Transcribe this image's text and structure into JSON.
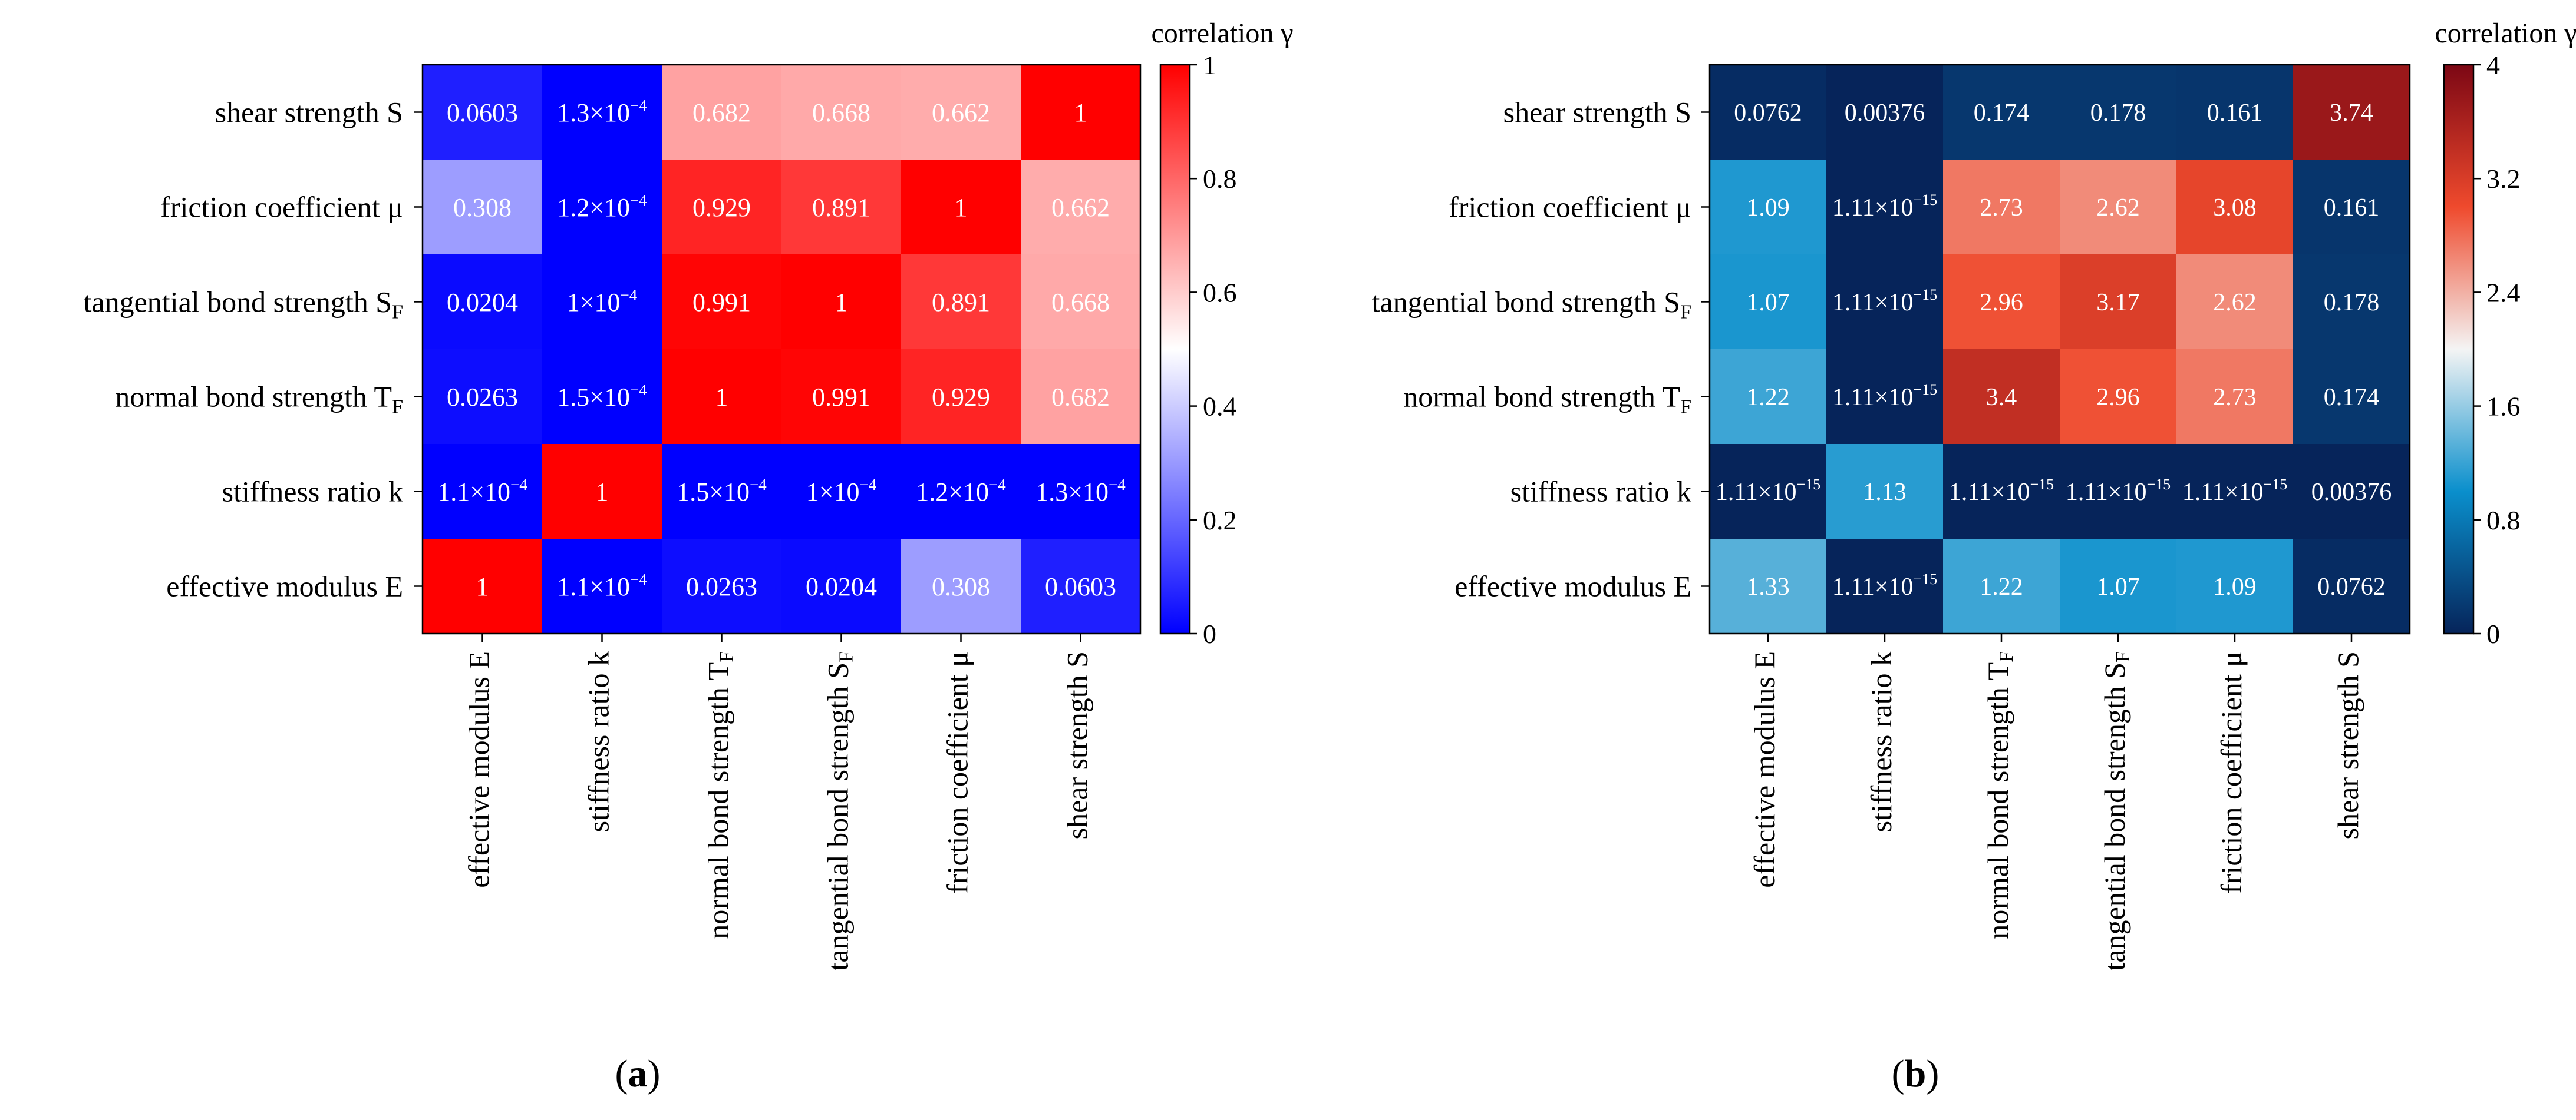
{
  "chart_data": [
    {
      "type": "heatmap",
      "panel_label": "a",
      "colorbar_label": "correlation γ",
      "colorbar_range": [
        0,
        1
      ],
      "colorbar_ticks": [
        "0",
        "0.2",
        "0.4",
        "0.6",
        "0.8",
        "1"
      ],
      "colormap": "blue-white-red",
      "row_labels": [
        [
          "shear strength S",
          ""
        ],
        [
          "friction coefficient μ",
          ""
        ],
        [
          "tangential bond strength S",
          "F"
        ],
        [
          "normal bond strength T",
          "F"
        ],
        [
          "stiffness ratio k",
          ""
        ],
        [
          "effective modulus E",
          ""
        ]
      ],
      "col_labels": [
        [
          "effective modulus E",
          ""
        ],
        [
          "stiffness ratio k",
          ""
        ],
        [
          "normal bond strength T",
          "F"
        ],
        [
          "tangential bond strength S",
          "F"
        ],
        [
          "friction coefficient μ",
          ""
        ],
        [
          "shear strength S",
          ""
        ]
      ],
      "values": [
        [
          0.0603,
          0.00013,
          0.682,
          0.668,
          0.662,
          1
        ],
        [
          0.308,
          0.00012,
          0.929,
          0.891,
          1,
          0.662
        ],
        [
          0.0204,
          0.0001,
          0.991,
          1,
          0.891,
          0.668
        ],
        [
          0.0263,
          0.00015,
          1,
          0.991,
          0.929,
          0.682
        ],
        [
          0.00011,
          1,
          0.00015,
          0.0001,
          0.00012,
          0.00013
        ],
        [
          1,
          0.00011,
          0.0263,
          0.0204,
          0.308,
          0.0603
        ]
      ],
      "cell_labels": [
        [
          "0.0603",
          "1.3×10^-4",
          "0.682",
          "0.668",
          "0.662",
          "1"
        ],
        [
          "0.308",
          "1.2×10^-4",
          "0.929",
          "0.891",
          "1",
          "0.662"
        ],
        [
          "0.0204",
          "1×10^-4",
          "0.991",
          "1",
          "0.891",
          "0.668"
        ],
        [
          "0.0263",
          "1.5×10^-4",
          "1",
          "0.991",
          "0.929",
          "0.682"
        ],
        [
          "1.1×10^-4",
          "1",
          "1.5×10^-4",
          "1×10^-4",
          "1.2×10^-4",
          "1.3×10^-4"
        ],
        [
          "1",
          "1.1×10^-4",
          "0.0263",
          "0.0204",
          "0.308",
          "0.0603"
        ]
      ]
    },
    {
      "type": "heatmap",
      "panel_label": "b",
      "colorbar_label": "correlation γ",
      "colorbar_range": [
        0,
        4
      ],
      "colorbar_ticks": [
        "0",
        "0.8",
        "1.6",
        "2.4",
        "3.2",
        "4"
      ],
      "colormap": "navy-cyan-white-red-darkred",
      "row_labels": [
        [
          "shear strength S",
          ""
        ],
        [
          "friction coefficient μ",
          ""
        ],
        [
          "tangential bond strength S",
          "F"
        ],
        [
          "normal bond strength T",
          "F"
        ],
        [
          "stiffness ratio k",
          ""
        ],
        [
          "effective modulus E",
          ""
        ]
      ],
      "col_labels": [
        [
          "effective modulus E",
          ""
        ],
        [
          "stiffness ratio k",
          ""
        ],
        [
          "normal bond strength T",
          "F"
        ],
        [
          "tangential bond strength S",
          "F"
        ],
        [
          "friction coefficient μ",
          ""
        ],
        [
          "shear strength S",
          ""
        ]
      ],
      "values": [
        [
          0.0762,
          0.00376,
          0.174,
          0.178,
          0.161,
          3.74
        ],
        [
          1.09,
          1.11e-15,
          2.73,
          2.62,
          3.08,
          0.161
        ],
        [
          1.07,
          1.11e-15,
          2.96,
          3.17,
          2.62,
          0.178
        ],
        [
          1.22,
          1.11e-15,
          3.4,
          2.96,
          2.73,
          0.174
        ],
        [
          1.11e-15,
          1.13,
          1.11e-15,
          1.11e-15,
          1.11e-15,
          0.00376
        ],
        [
          1.33,
          1.11e-15,
          1.22,
          1.07,
          1.09,
          0.0762
        ]
      ],
      "cell_labels": [
        [
          "0.0762",
          "0.00376",
          "0.174",
          "0.178",
          "0.161",
          "3.74"
        ],
        [
          "1.09",
          "1.11×10^-15",
          "2.73",
          "2.62",
          "3.08",
          "0.161"
        ],
        [
          "1.07",
          "1.11×10^-15",
          "2.96",
          "3.17",
          "2.62",
          "0.178"
        ],
        [
          "1.22",
          "1.11×10^-15",
          "3.4",
          "2.96",
          "2.73",
          "0.174"
        ],
        [
          "1.11×10^-15",
          "1.13",
          "1.11×10^-15",
          "1.11×10^-15",
          "1.11×10^-15",
          "0.00376"
        ],
        [
          "1.33",
          "1.11×10^-15",
          "1.22",
          "1.07",
          "1.09",
          "0.0762"
        ]
      ]
    }
  ]
}
